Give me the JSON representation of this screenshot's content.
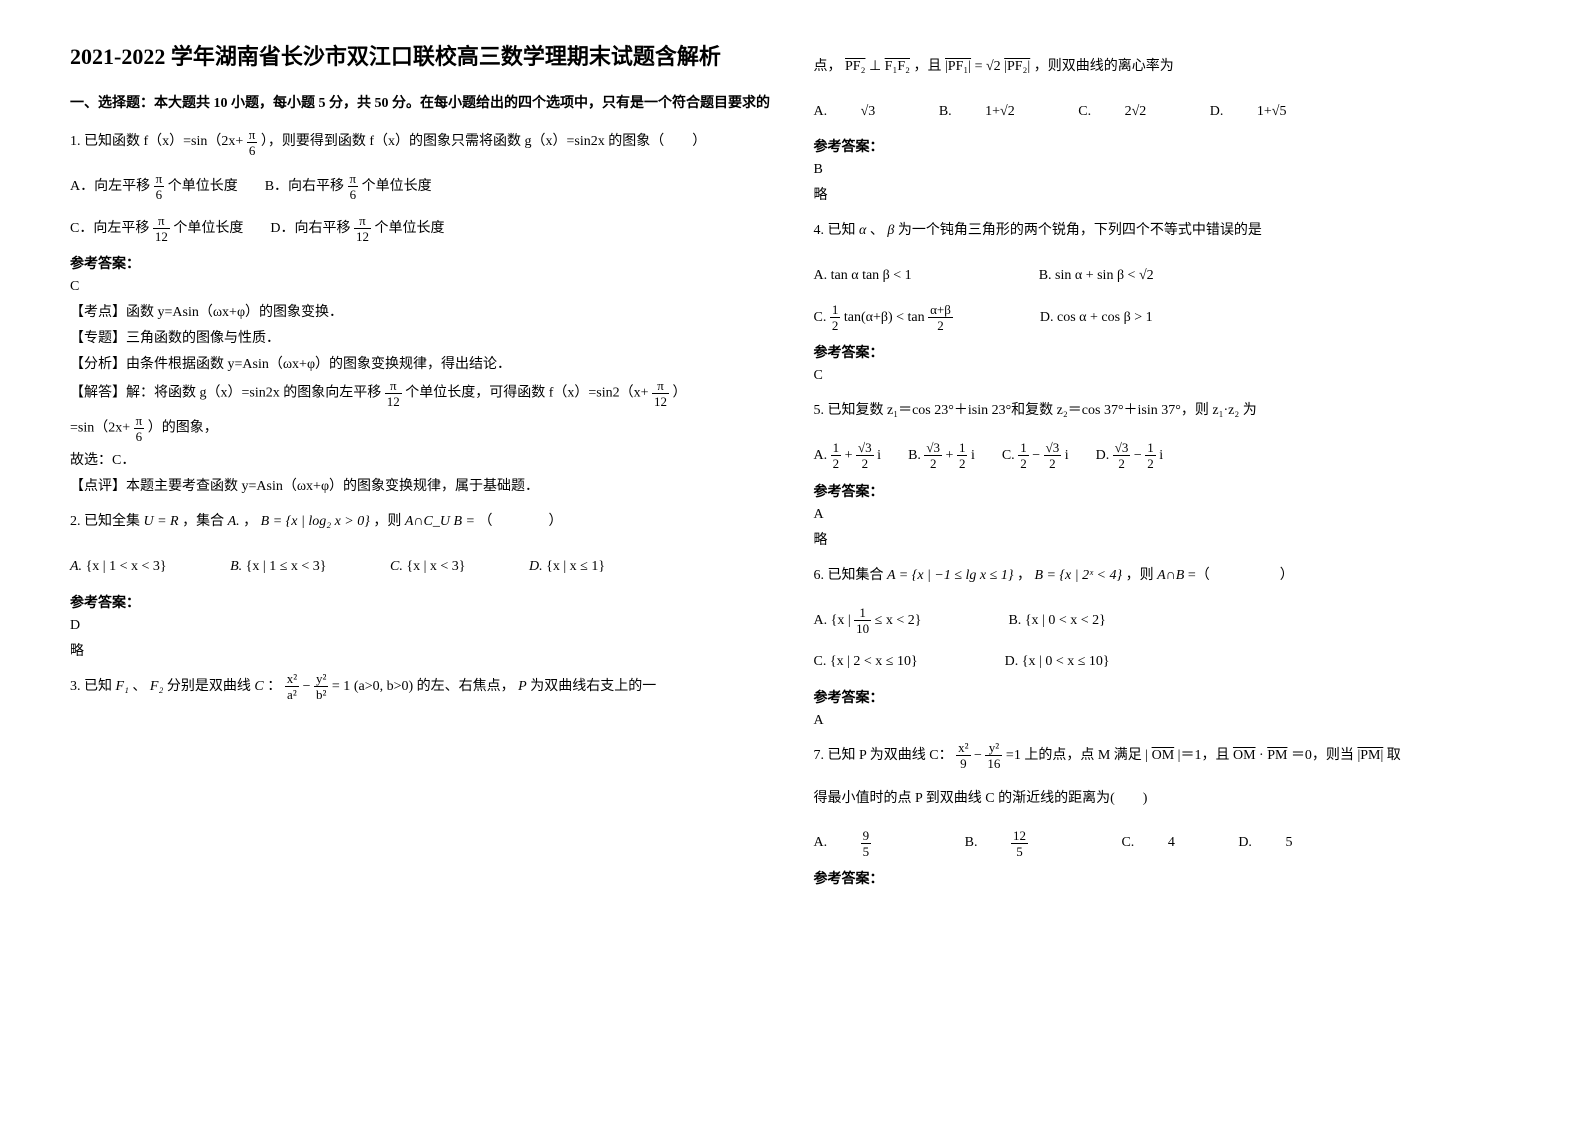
{
  "title": "2021-2022 学年湖南省长沙市双江口联校高三数学理期末试题含解析",
  "section1_head": "一、选择题：本大题共 10 小题，每小题 5 分，共 50 分。在每小题给出的四个选项中，只有是一个符合题目要求的",
  "q1": {
    "stem_a": "1. 已知函数 f（x）=sin（2x+",
    "stem_b": "），则要得到函数 f（x）的图象只需将函数 g（x）=sin2x 的图象（　　）",
    "optA_a": "A．向左平移",
    "optA_b": "个单位长度",
    "optB_a": "B．向右平移",
    "optB_b": "个单位长度",
    "optC_a": "C．向左平移",
    "optC_b": "个单位长度",
    "optD_a": "D．向右平移",
    "optD_b": "个单位长度",
    "ans_label": "参考答案：",
    "ans": "C",
    "kd": "【考点】函数 y=Asin（ωx+φ）的图象变换．",
    "zt": "【专题】三角函数的图像与性质．",
    "fx": "【分析】由条件根据函数 y=Asin（ωx+φ）的图象变换规律，得出结论．",
    "jd_a": "【解答】解：将函数 g（x）=sin2x 的图象向左平移",
    "jd_b": "个单位长度，可得函数 f（x）=sin2（x+",
    "jd_c": "）",
    "jd2_a": "=sin（2x+",
    "jd2_b": "）的图象，",
    "gx": "故选：C．",
    "dp": "【点评】本题主要考查函数 y=Asin（ωx+φ）的图象变换规律，属于基础题．",
    "pi": "π",
    "six": "6",
    "twelve": "12"
  },
  "q2": {
    "stem_a": "2. 已知全集",
    "u": "U = R",
    "stem_b": "，集合",
    "A": "A.",
    "stem_c": "，",
    "B": "B = {x | log₂ x > 0}",
    "stem_d": "，则",
    "expr": "A∩C_U B =",
    "stem_e": "（　　　　）",
    "optA": "{x | 1 < x < 3}",
    "optB": "{x | 1 ≤ x < 3}",
    "optC": "{x | x < 3}",
    "optD": "{x | x ≤ 1}",
    "Bl": "B.",
    "C": "C.",
    "D": "D.",
    "ans_label": "参考答案：",
    "ans": "D",
    "lue": "略"
  },
  "q3": {
    "stem_a": "3. 已知",
    "F1": "F₁",
    "F2": "F₂",
    "stem_b": "、",
    "stem_c": "分别是双曲线",
    "Cc": "C",
    "stem_d": "：",
    "eq_a": "x²",
    "eq_b": "a²",
    "eq_c": "y²",
    "eq_d": "b²",
    "eq_e": " = 1",
    "cond": "(a>0, b>0)",
    "stem_e": "的左、右焦点，",
    "P": "P",
    "stem_f": "为双曲线右支上的一",
    "stem2_a": "点，",
    "pf2": "PF₂",
    "f1f2": "F₁F₂",
    "perp": " ⊥ ",
    "stem2_b": "，且",
    "pf1abs": "|PF₁|",
    "eq": " = ",
    "r2": "√2",
    "pf2abs": "|PF₂|",
    "stem2_c": "，则双曲线的离心率为",
    "optA": "√3",
    "optB": "1+√2",
    "optC": "2√2",
    "optD": "1+√5",
    "A": "A.",
    "B": "B.",
    "C": "C.",
    "D": "D.",
    "ans_label": "参考答案：",
    "ans": "B",
    "lue": "略"
  },
  "q4": {
    "stem_a": "4. 已知",
    "alpha": "α",
    "beta": "β",
    "stem_b": " 、 ",
    "stem_c": "为一个钝角三角形的两个锐角，下列四个不等式中错误的是",
    "optA": "tan α tan β < 1",
    "optB": "sin α + sin β < √2",
    "optC_a": "1",
    "optC_b": "2",
    "optC_c": "tan(α+β) < tan",
    "optC_d": "α+β",
    "optC_e": "2",
    "optD": "cos α + cos β > 1",
    "A": "A.",
    "B": "B.",
    "C": "C.",
    "D": "D.",
    "ans_label": "参考答案：",
    "ans": "C"
  },
  "q5": {
    "stem": "5. 已知复数 z₁＝cos 23°＋isin 23°和复数 z₂＝cos 37°＋isin 37°，则 z₁·z₂ 为",
    "A": "A.",
    "B": "B.",
    "C": "C.",
    "D": "D.",
    "half": "1",
    "two": "2",
    "r3": "√3",
    "plus": " + ",
    "minus": " − ",
    "i": "i",
    "ans_label": "参考答案：",
    "ans": "A",
    "lue": "略"
  },
  "q6": {
    "stem_a": "6. 已知集合",
    "Aset": "A = {x | −1 ≤ lg x ≤ 1}",
    "stem_b": "，",
    "Bset": "B = {x | 2ˣ < 4}",
    "stem_c": "，则",
    "expr": "A∩B",
    "stem_d": "=（　　　　　）",
    "A": "A.",
    "Bl": "B.",
    "C": "C.",
    "D": "D.",
    "optA_a": "{x |",
    "optA_b": "1",
    "optA_c": "10",
    "optA_d": " ≤ x < 2}",
    "optB": "{x | 0 < x < 2}",
    "optC": "{x | 2 < x ≤ 10}",
    "optD": "{x | 0 < x ≤ 10}",
    "ans_label": "参考答案：",
    "ans": "A"
  },
  "q7": {
    "stem_a": "7. 已知 P 为双曲线 C：",
    "x2": "x²",
    "nine": "9",
    "y2": "y²",
    "sixteen": "16",
    "eq": " =1 ",
    "stem_b": "上的点，点 M 满足 | ",
    "OM": "OM",
    "stem_c": " |＝1，且",
    "dot": " · ",
    "PM": "PM",
    "stem_d": " ＝0，则当",
    "PMabs": "|PM|",
    "stem_e": "取",
    "stem2": "得最小值时的点 P 到双曲线 C 的渐近线的距离为(　　)",
    "A": "A.",
    "B": "B.",
    "C": "C.",
    "D": "D.",
    "optA_n": "9",
    "optA_d": "5",
    "optB_n": "12",
    "optB_d": "5",
    "optC": "4",
    "optD": "5",
    "ans_label": "参考答案："
  }
}
